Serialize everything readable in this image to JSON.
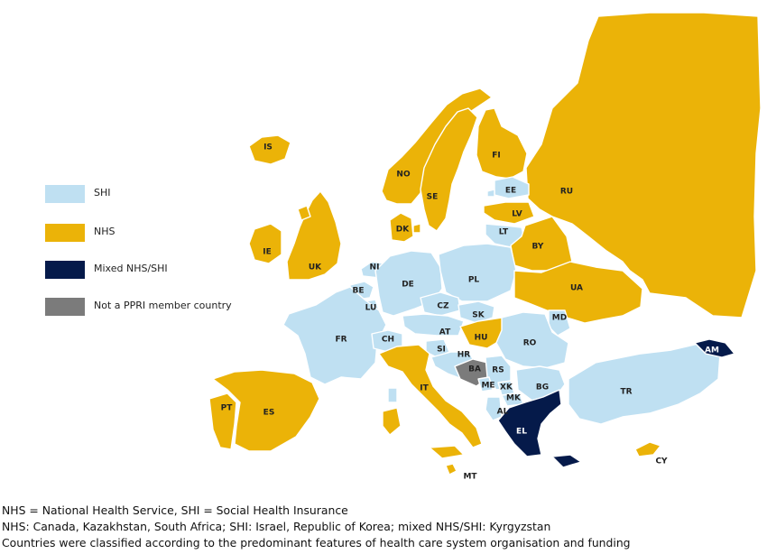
{
  "colors": {
    "shi": "#bfe0f2",
    "nhs": "#ebb308",
    "mixed": "#051a4a",
    "nonmember": "#7b7b7b"
  },
  "legend": [
    {
      "key": "shi",
      "label": "SHI"
    },
    {
      "key": "nhs",
      "label": "NHS"
    },
    {
      "key": "mixed",
      "label": "Mixed NHS/SHI"
    },
    {
      "key": "nonmember",
      "label": "Not a PPRI member country"
    }
  ],
  "countries": [
    {
      "code": "IS",
      "category": "nhs"
    },
    {
      "code": "NO",
      "category": "nhs"
    },
    {
      "code": "SE",
      "category": "nhs"
    },
    {
      "code": "FI",
      "category": "nhs"
    },
    {
      "code": "RU",
      "category": "nhs"
    },
    {
      "code": "EE",
      "category": "shi"
    },
    {
      "code": "LV",
      "category": "nhs"
    },
    {
      "code": "LT",
      "category": "shi"
    },
    {
      "code": "BY",
      "category": "nhs"
    },
    {
      "code": "DK",
      "category": "nhs"
    },
    {
      "code": "IE",
      "category": "nhs"
    },
    {
      "code": "UK",
      "category": "nhs"
    },
    {
      "code": "NI",
      "category": "shi"
    },
    {
      "code": "BE",
      "category": "shi"
    },
    {
      "code": "LU",
      "category": "shi"
    },
    {
      "code": "DE",
      "category": "shi"
    },
    {
      "code": "PL",
      "category": "shi"
    },
    {
      "code": "UA",
      "category": "nhs"
    },
    {
      "code": "CZ",
      "category": "shi"
    },
    {
      "code": "SK",
      "category": "shi"
    },
    {
      "code": "AT",
      "category": "shi"
    },
    {
      "code": "HU",
      "category": "nhs"
    },
    {
      "code": "MD",
      "category": "shi"
    },
    {
      "code": "RO",
      "category": "shi"
    },
    {
      "code": "FR",
      "category": "shi"
    },
    {
      "code": "CH",
      "category": "shi"
    },
    {
      "code": "SI",
      "category": "shi"
    },
    {
      "code": "HR",
      "category": "shi"
    },
    {
      "code": "BA",
      "category": "nonmember"
    },
    {
      "code": "RS",
      "category": "shi"
    },
    {
      "code": "ME",
      "category": "shi"
    },
    {
      "code": "XK",
      "category": "shi"
    },
    {
      "code": "MK",
      "category": "shi"
    },
    {
      "code": "AL",
      "category": "shi"
    },
    {
      "code": "BG",
      "category": "shi"
    },
    {
      "code": "EL",
      "category": "mixed"
    },
    {
      "code": "TR",
      "category": "shi"
    },
    {
      "code": "AM",
      "category": "mixed"
    },
    {
      "code": "IT",
      "category": "nhs"
    },
    {
      "code": "PT",
      "category": "nhs"
    },
    {
      "code": "ES",
      "category": "nhs"
    },
    {
      "code": "MT",
      "category": "nhs"
    },
    {
      "code": "CY",
      "category": "nhs"
    }
  ],
  "notes": [
    "NHS = National Health Service, SHI = Social Health Insurance",
    "NHS: Canada, Kazakhstan, South Africa; SHI: Israel, Republic of Korea; mixed NHS/SHI: Kyrgyzstan",
    "Countries were classified according to the predominant features of health care system organisation and funding"
  ]
}
